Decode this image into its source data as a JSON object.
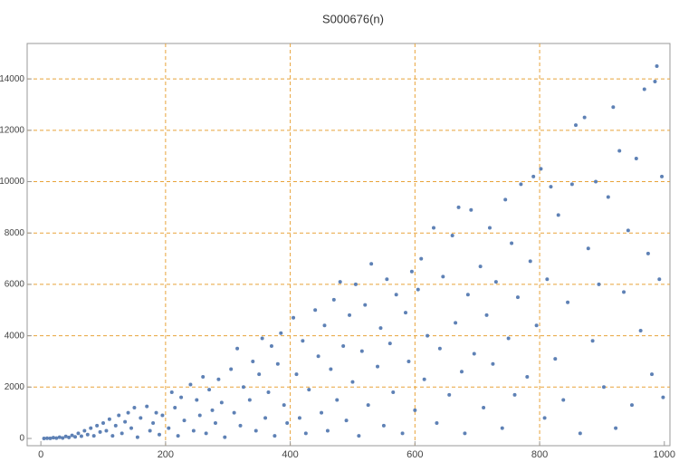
{
  "chart_data": {
    "type": "scatter",
    "title": "S000676(n)",
    "color": "#5e81b5",
    "grid": true,
    "grid_color": "#e8a33a",
    "x": [
      5,
      10,
      15,
      20,
      25,
      30,
      35,
      40,
      45,
      50,
      55,
      60,
      65,
      70,
      75,
      80,
      85,
      90,
      95,
      100,
      105,
      110,
      115,
      120,
      125,
      130,
      135,
      140,
      145,
      150,
      155,
      160,
      170,
      175,
      180,
      185,
      190,
      195,
      205,
      210,
      215,
      220,
      225,
      230,
      240,
      245,
      250,
      255,
      260,
      265,
      270,
      275,
      280,
      285,
      290,
      295,
      305,
      310,
      315,
      320,
      325,
      335,
      340,
      345,
      350,
      355,
      360,
      365,
      370,
      375,
      380,
      385,
      390,
      395,
      405,
      410,
      415,
      420,
      425,
      430,
      440,
      445,
      450,
      455,
      460,
      465,
      470,
      475,
      480,
      485,
      490,
      495,
      500,
      505,
      510,
      515,
      520,
      525,
      530,
      540,
      545,
      550,
      555,
      560,
      565,
      570,
      580,
      585,
      590,
      595,
      600,
      605,
      610,
      615,
      620,
      630,
      635,
      640,
      645,
      655,
      660,
      665,
      670,
      675,
      680,
      685,
      690,
      695,
      705,
      710,
      715,
      720,
      725,
      730,
      740,
      745,
      750,
      755,
      760,
      765,
      770,
      780,
      785,
      790,
      795,
      802,
      808,
      812,
      818,
      825,
      830,
      838,
      845,
      852,
      858,
      865,
      872,
      878,
      885,
      890,
      895,
      903,
      910,
      918,
      922,
      928,
      935,
      942,
      948,
      955,
      962,
      968,
      974,
      980,
      985,
      988,
      992,
      996,
      998
    ],
    "values": [
      0,
      10,
      5,
      30,
      15,
      50,
      20,
      80,
      40,
      120,
      60,
      200,
      90,
      300,
      150,
      400,
      100,
      500,
      250,
      600,
      300,
      750,
      100,
      500,
      900,
      200,
      650,
      1000,
      400,
      1200,
      50,
      800,
      1250,
      300,
      600,
      1000,
      150,
      900,
      400,
      1800,
      1200,
      100,
      1600,
      700,
      2100,
      300,
      1500,
      900,
      2400,
      200,
      1900,
      1100,
      600,
      2300,
      1400,
      50,
      2700,
      1000,
      3500,
      500,
      2000,
      1500,
      3000,
      300,
      2500,
      3900,
      800,
      1800,
      3600,
      100,
      2900,
      4100,
      1300,
      600,
      4700,
      2500,
      800,
      3800,
      200,
      1900,
      5000,
      3200,
      1000,
      4400,
      300,
      2700,
      5400,
      1500,
      6100,
      3600,
      700,
      4800,
      2200,
      6000,
      100,
      3400,
      5200,
      1300,
      6800,
      2800,
      4300,
      500,
      6200,
      3700,
      1800,
      5600,
      200,
      4900,
      3000,
      6500,
      1100,
      5800,
      7000,
      2300,
      4000,
      8200,
      600,
      3500,
      6300,
      1700,
      7900,
      4500,
      9000,
      2600,
      200,
      5600,
      8900,
      3300,
      6700,
      1200,
      4800,
      8200,
      2900,
      6100,
      400,
      9300,
      3900,
      7600,
      1700,
      5500,
      9900,
      2400,
      6900,
      10200,
      4400,
      10500,
      800,
      6200,
      9800,
      3100,
      8700,
      1500,
      5300,
      9900,
      12200,
      200,
      12500,
      7400,
      3800,
      10000,
      6000,
      2000,
      9400,
      12900,
      400,
      11200,
      5700,
      8100,
      1300,
      10900,
      4200,
      13600,
      7200,
      2500,
      13900,
      14500,
      6200,
      10200,
      1600
    ],
    "xlim": [
      -22,
      1009
    ],
    "ylim": [
      -282,
      15380
    ],
    "xticks": [
      0,
      200,
      400,
      600,
      800,
      1000
    ],
    "yticks": [
      0,
      2000,
      4000,
      6000,
      8000,
      10000,
      12000,
      14000
    ]
  }
}
